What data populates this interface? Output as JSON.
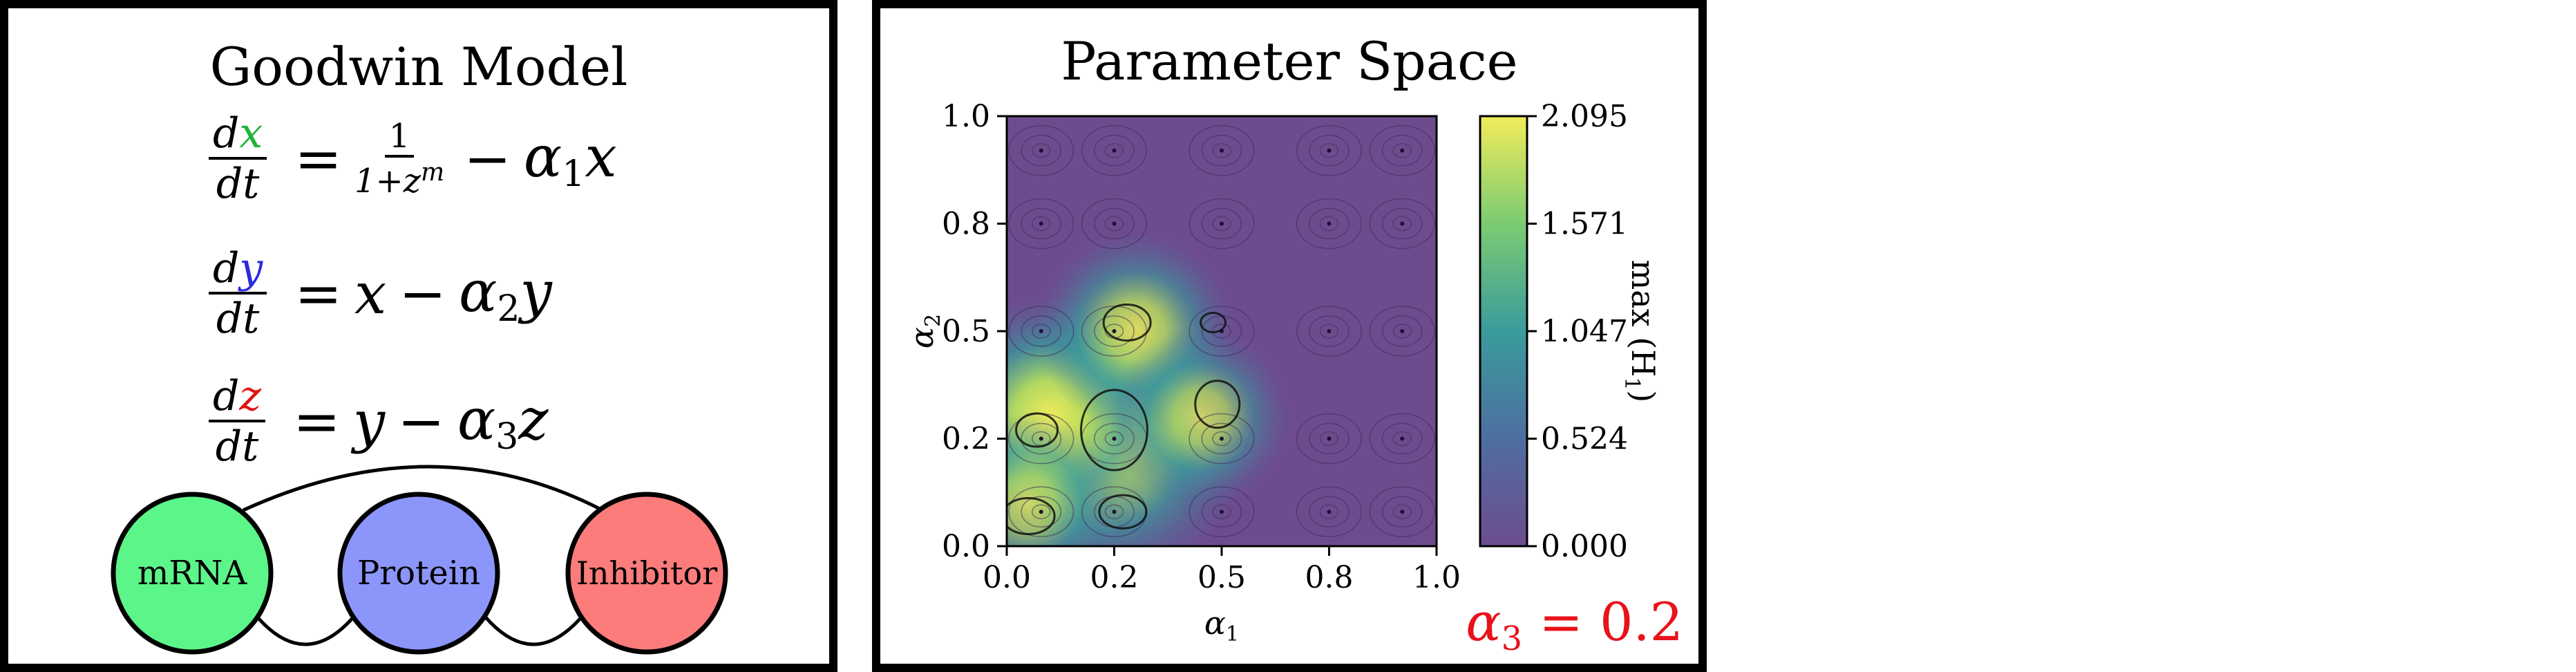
{
  "left": {
    "title": "Goodwin Model",
    "eq1": {
      "d": "d",
      "var": "x",
      "dt": "dt",
      "one": "1",
      "den": "1+z",
      "exp": "m",
      "minus": "−",
      "alpha": "α",
      "sub": "1",
      "tail": "x",
      "eq": "="
    },
    "eq2": {
      "d": "d",
      "var": "y",
      "dt": "dt",
      "rhs_a": "x",
      "minus": "−",
      "alpha": "α",
      "sub": "2",
      "tail": "y",
      "eq": "="
    },
    "eq3": {
      "d": "d",
      "var": "z",
      "dt": "dt",
      "rhs_a": "y",
      "minus": "−",
      "alpha": "α",
      "sub": "3",
      "tail": "z",
      "eq": "="
    },
    "nodes": {
      "mrna": {
        "label": "mRNA",
        "color": "#5cf58a"
      },
      "protein": {
        "label": "Protein",
        "color": "#8c96fa"
      },
      "inhibitor": {
        "label": "Inhibitor",
        "color": "#fc7b7b"
      }
    },
    "colors": {
      "x": "#1db436",
      "y": "#2a2ae0",
      "z": "#e01414"
    }
  },
  "right": {
    "title": "Parameter Space",
    "chart_data": {
      "type": "heatmap",
      "title": "Parameter Space",
      "xlabel": "α",
      "xlabel_sub": "1",
      "ylabel": "α",
      "ylabel_sub": "2",
      "xlim": [
        0.0,
        1.0
      ],
      "ylim": [
        0.0,
        1.0
      ],
      "x_ticks": [
        "0.0",
        "0.2",
        "0.5",
        "0.8",
        "1.0"
      ],
      "x_tick_values": [
        0.0,
        0.25,
        0.5,
        0.75,
        1.0
      ],
      "y_ticks": [
        "0.0",
        "0.2",
        "0.5",
        "0.8",
        "1.0"
      ],
      "y_tick_values": [
        0.0,
        0.25,
        0.5,
        0.75,
        1.0
      ],
      "colorbar": {
        "label": "max (H",
        "label_sub": "1",
        "label_end": ")",
        "ticks": [
          "0.000",
          "0.524",
          "1.047",
          "1.571",
          "2.095"
        ],
        "min": 0.0,
        "max": 2.095,
        "colormap": "viridis"
      },
      "hotspots": [
        {
          "x": 0.22,
          "y": 0.24,
          "value": 2.095
        },
        {
          "x": 0.1,
          "y": 0.3,
          "value": 1.6
        },
        {
          "x": 0.3,
          "y": 0.5,
          "value": 1.1
        },
        {
          "x": 0.45,
          "y": 0.3,
          "value": 0.9
        },
        {
          "x": 0.05,
          "y": 0.1,
          "value": 0.9
        }
      ]
    },
    "alpha3": {
      "alpha": "α",
      "sub": "3",
      "rest": " = 0.2",
      "color": "#e8121a"
    }
  }
}
